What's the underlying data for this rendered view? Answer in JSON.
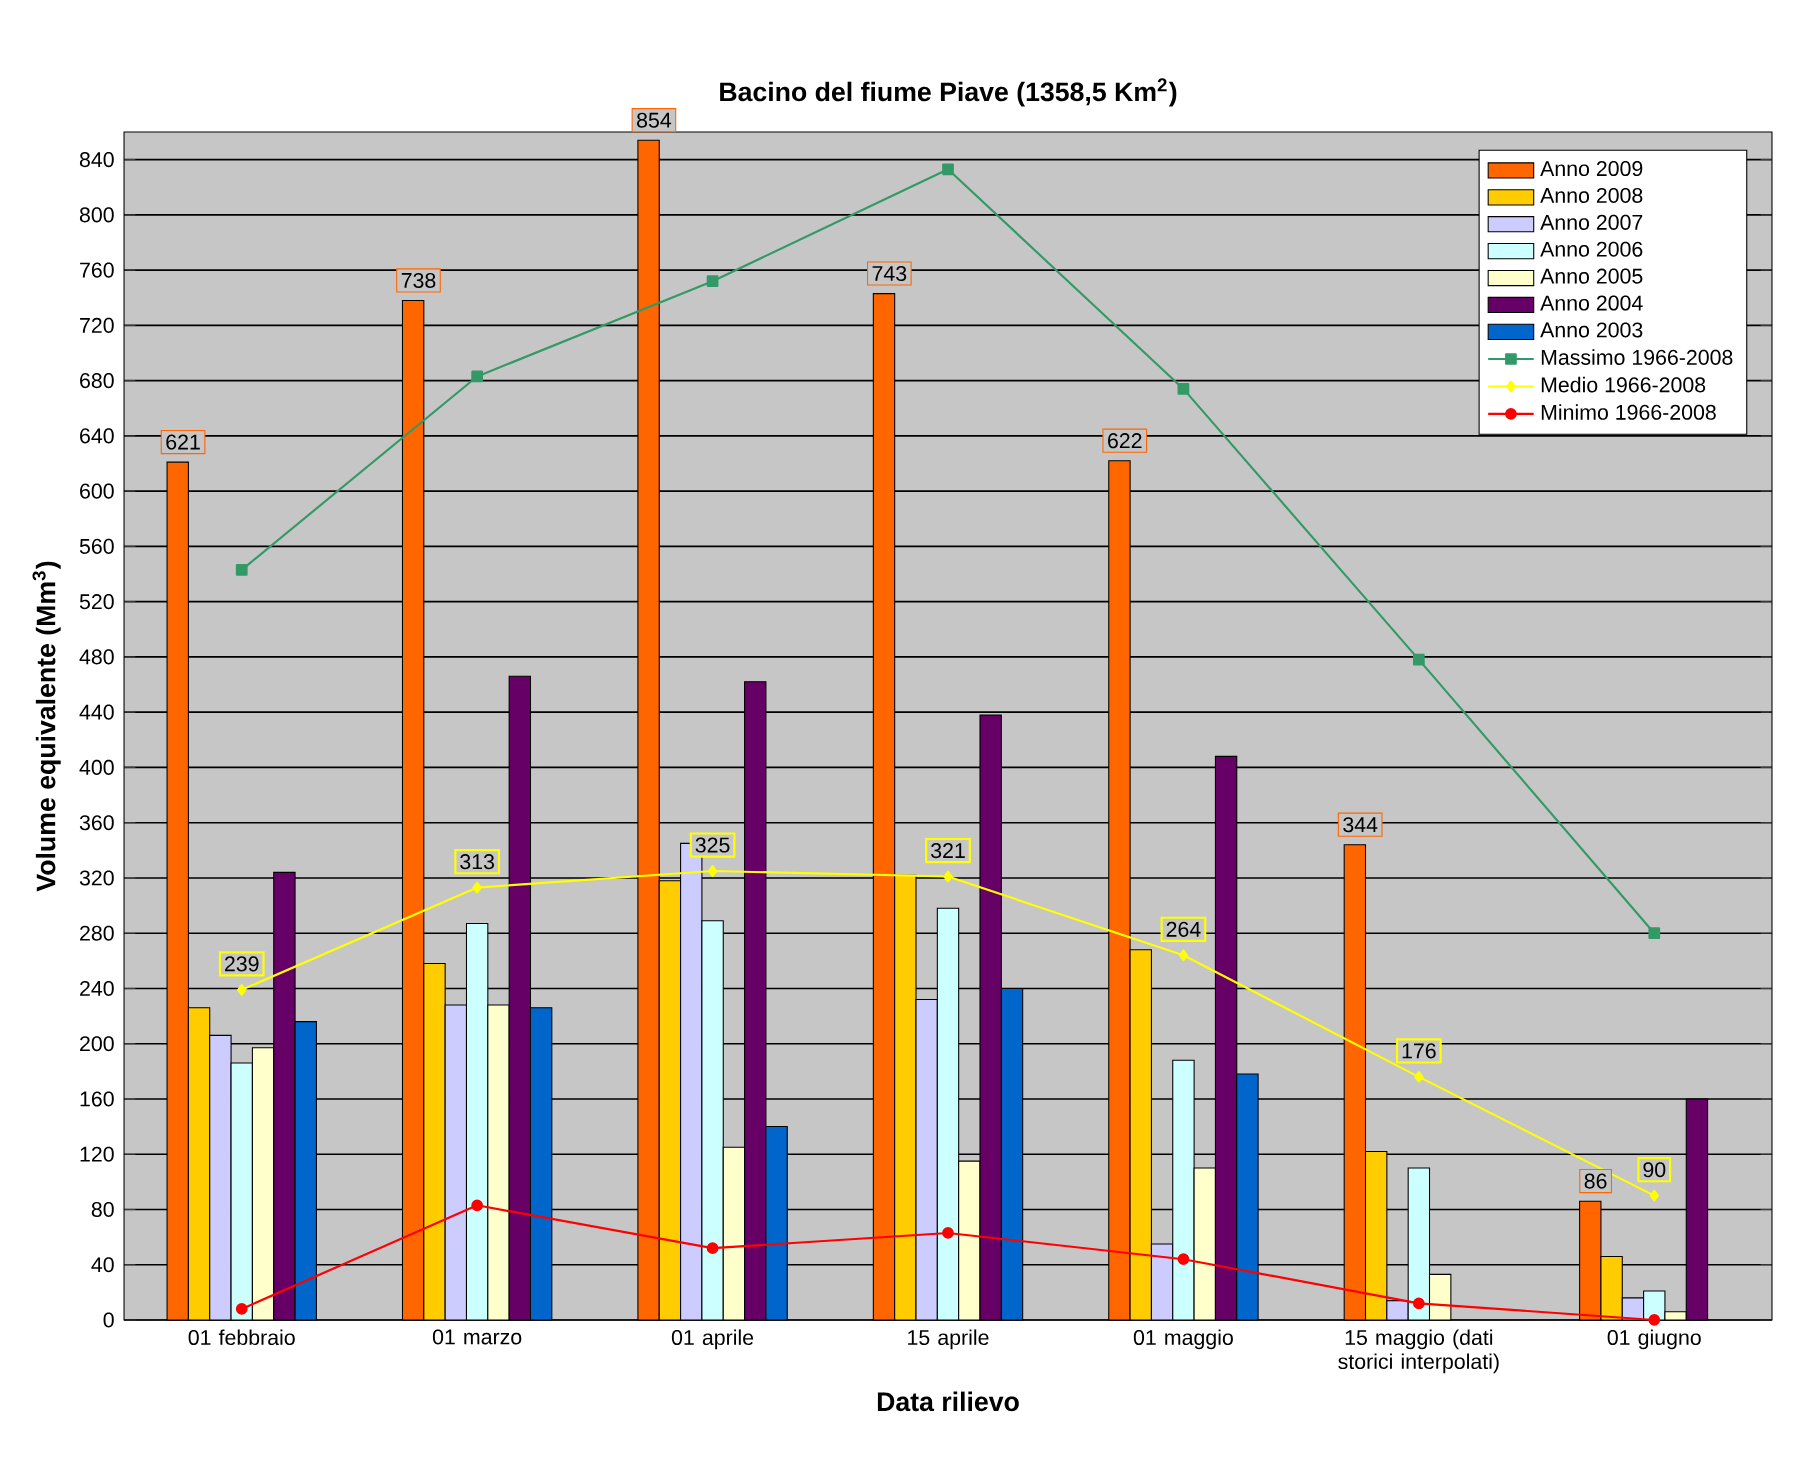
{
  "chart_data": {
    "type": "bar",
    "title": "Bacino del fiume Piave (1358,5 Km$^{2}$)",
    "xlabel": "Data rilievo",
    "ylabel": "Volume equivalente (Mm$^{3}$)",
    "categories": [
      "01 febbraio",
      "01 marzo",
      "01 aprile",
      "15 aprile",
      "01 maggio",
      "15 maggio (dati storici interpolati)",
      "01 giugno"
    ],
    "series": [
      {
        "name": "Anno 2009",
        "color": "#ff6600",
        "values": [
          621,
          738,
          854,
          743,
          622,
          344,
          86
        ],
        "value_labels": [
          "621",
          "738",
          "854",
          "743",
          "622",
          "344",
          "86"
        ]
      },
      {
        "name": "Anno 2008",
        "color": "#ffcc00",
        "values": [
          226,
          258,
          318,
          322,
          268,
          122,
          46
        ]
      },
      {
        "name": "Anno 2007",
        "color": "#ccccff",
        "values": [
          206,
          228,
          345,
          232,
          55,
          14,
          16
        ]
      },
      {
        "name": "Anno 2006",
        "color": "#ccffff",
        "values": [
          186,
          287,
          289,
          298,
          188,
          110,
          21
        ]
      },
      {
        "name": "Anno 2005",
        "color": "#ffffcc",
        "values": [
          197,
          228,
          125,
          115,
          110,
          33,
          6
        ]
      },
      {
        "name": "Anno 2004",
        "color": "#660066",
        "values": [
          324,
          466,
          462,
          438,
          408,
          null,
          160
        ]
      },
      {
        "name": "Anno 2003",
        "color": "#0066cc",
        "values": [
          216,
          226,
          140,
          240,
          178,
          null,
          null
        ]
      },
      {
        "name": "Massimo  1966-2008",
        "type": "line",
        "color": "#339966",
        "marker": "square",
        "values": [
          543,
          683,
          752,
          833,
          674,
          478,
          280
        ]
      },
      {
        "name": "Medio      1966-2008",
        "type": "line",
        "color": "#ffff00",
        "marker": "diamond",
        "values": [
          239,
          313,
          325,
          321,
          264,
          176,
          90
        ],
        "value_labels": [
          "239",
          "313",
          "325",
          "321",
          "264",
          "176",
          "90"
        ]
      },
      {
        "name": "Minimo    1966-2008",
        "type": "line",
        "color": "#ff0000",
        "marker": "circle",
        "values": [
          8,
          83,
          52,
          63,
          44,
          12,
          0
        ]
      }
    ],
    "ylim": [
      0,
      860
    ],
    "yticks": [
      0,
      40,
      80,
      120,
      160,
      200,
      240,
      280,
      320,
      360,
      400,
      440,
      480,
      520,
      560,
      600,
      640,
      680,
      720,
      760,
      800,
      840
    ],
    "grid": "y",
    "legend": "top right"
  }
}
